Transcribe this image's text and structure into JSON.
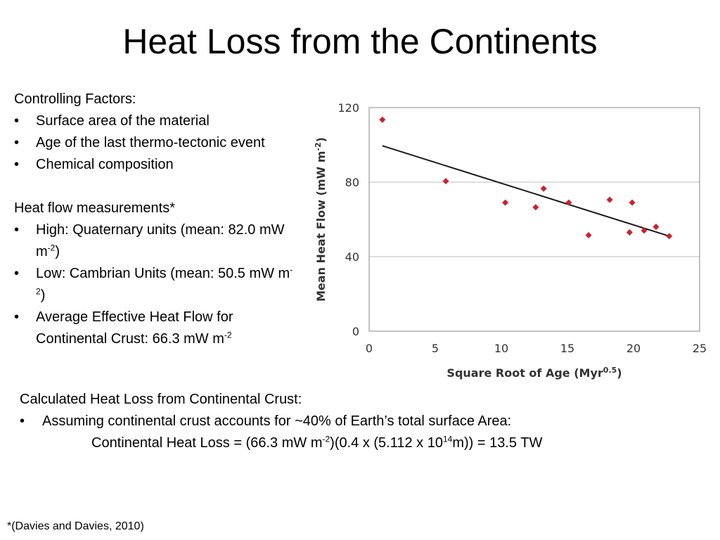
{
  "slide": {
    "title": "Heat Loss from the Continents",
    "bullet_glyph": "•",
    "controlling": {
      "heading": "Controlling Factors:",
      "items": [
        "Surface area of the material",
        "Age of the last thermo-tectonic event",
        "Chemical composition"
      ]
    },
    "measurements": {
      "heading": "Heat flow measurements*",
      "high": {
        "text": "High: Quaternary units (mean: 82.0 mW m",
        "sup": "-2",
        "tail": ")"
      },
      "low": {
        "text": "Low: Cambrian Units (mean: 50.5 mW m",
        "sup": "-2",
        "tail": ")"
      },
      "average": {
        "text": "Average Effective Heat Flow for Continental Crust: 66.3 mW m",
        "sup": "-2"
      }
    },
    "calculation": {
      "heading": "Calculated Heat Loss from Continental Crust:",
      "bullet": "Assuming continental crust accounts for ~40% of Earth’s total surface Area:",
      "formula_part1": "Continental Heat Loss = (66.3 mW m",
      "formula_sup1": "-2",
      "formula_part2": ")(0.4 x (5.112 x 10",
      "formula_sup2": "14",
      "formula_part3": "m)) = 13.5 TW"
    },
    "citation": "*(Davies and Davies, 2010)"
  },
  "chart_data": {
    "type": "scatter",
    "xlabel": "Square Root of Age (Myr",
    "xlabel_sup": "0.5",
    "xlabel_tail": ")",
    "ylabel": "Mean Heat Flow (mW m",
    "ylabel_sup": "-2",
    "ylabel_tail": ")",
    "xlim": [
      0,
      25
    ],
    "ylim": [
      0,
      120
    ],
    "xticks": [
      0,
      5,
      10,
      15,
      20,
      25
    ],
    "yticks": [
      0,
      40,
      80,
      120
    ],
    "grid": "horizontal",
    "legend": "none",
    "marker_color": "#d0202a",
    "series": [
      {
        "x": [
          1.0,
          5.8,
          10.3,
          12.6,
          13.2,
          15.1,
          16.6,
          18.2,
          19.7,
          19.9,
          20.8,
          21.7,
          22.7
        ],
        "y": [
          113.5,
          80.5,
          69.0,
          66.5,
          76.5,
          69.0,
          51.5,
          70.5,
          53.0,
          69.0,
          54.0,
          56.0,
          51.0
        ]
      }
    ],
    "trendline": {
      "x": [
        1.0,
        22.7
      ],
      "y": [
        99.5,
        51.0
      ]
    }
  }
}
